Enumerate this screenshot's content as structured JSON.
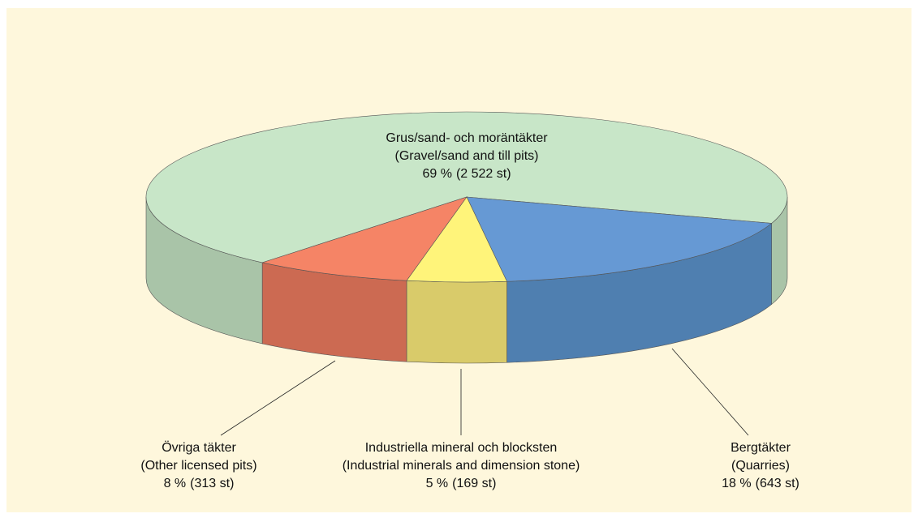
{
  "chart_data": {
    "type": "pie",
    "categories": [
      "Grus/sand- och moräntäkter",
      "Bergtäkter",
      "Industriella mineral och blocksten",
      "Övriga täkter"
    ],
    "categories_en": [
      "(Gravel/sand and till pits)",
      "(Quarries)",
      "(Industrial minerals and dimension stone)",
      "(Other licensed pits)"
    ],
    "values": [
      69,
      18,
      5,
      8
    ],
    "value_labels": [
      "69 %",
      "18 %",
      "5 %",
      "8 %"
    ],
    "counts": [
      2522,
      643,
      169,
      313
    ],
    "count_labels": [
      "(2 522 st)",
      "(643 st)",
      "(169 st)",
      "(313 st)"
    ],
    "colors": [
      "#c8e6c8",
      "#6699d4",
      "#fff47a",
      "#f58466"
    ],
    "side_colors": [
      "#a9c4a8",
      "#4f7fb0",
      "#d9cb6a",
      "#cc6a52"
    ]
  }
}
